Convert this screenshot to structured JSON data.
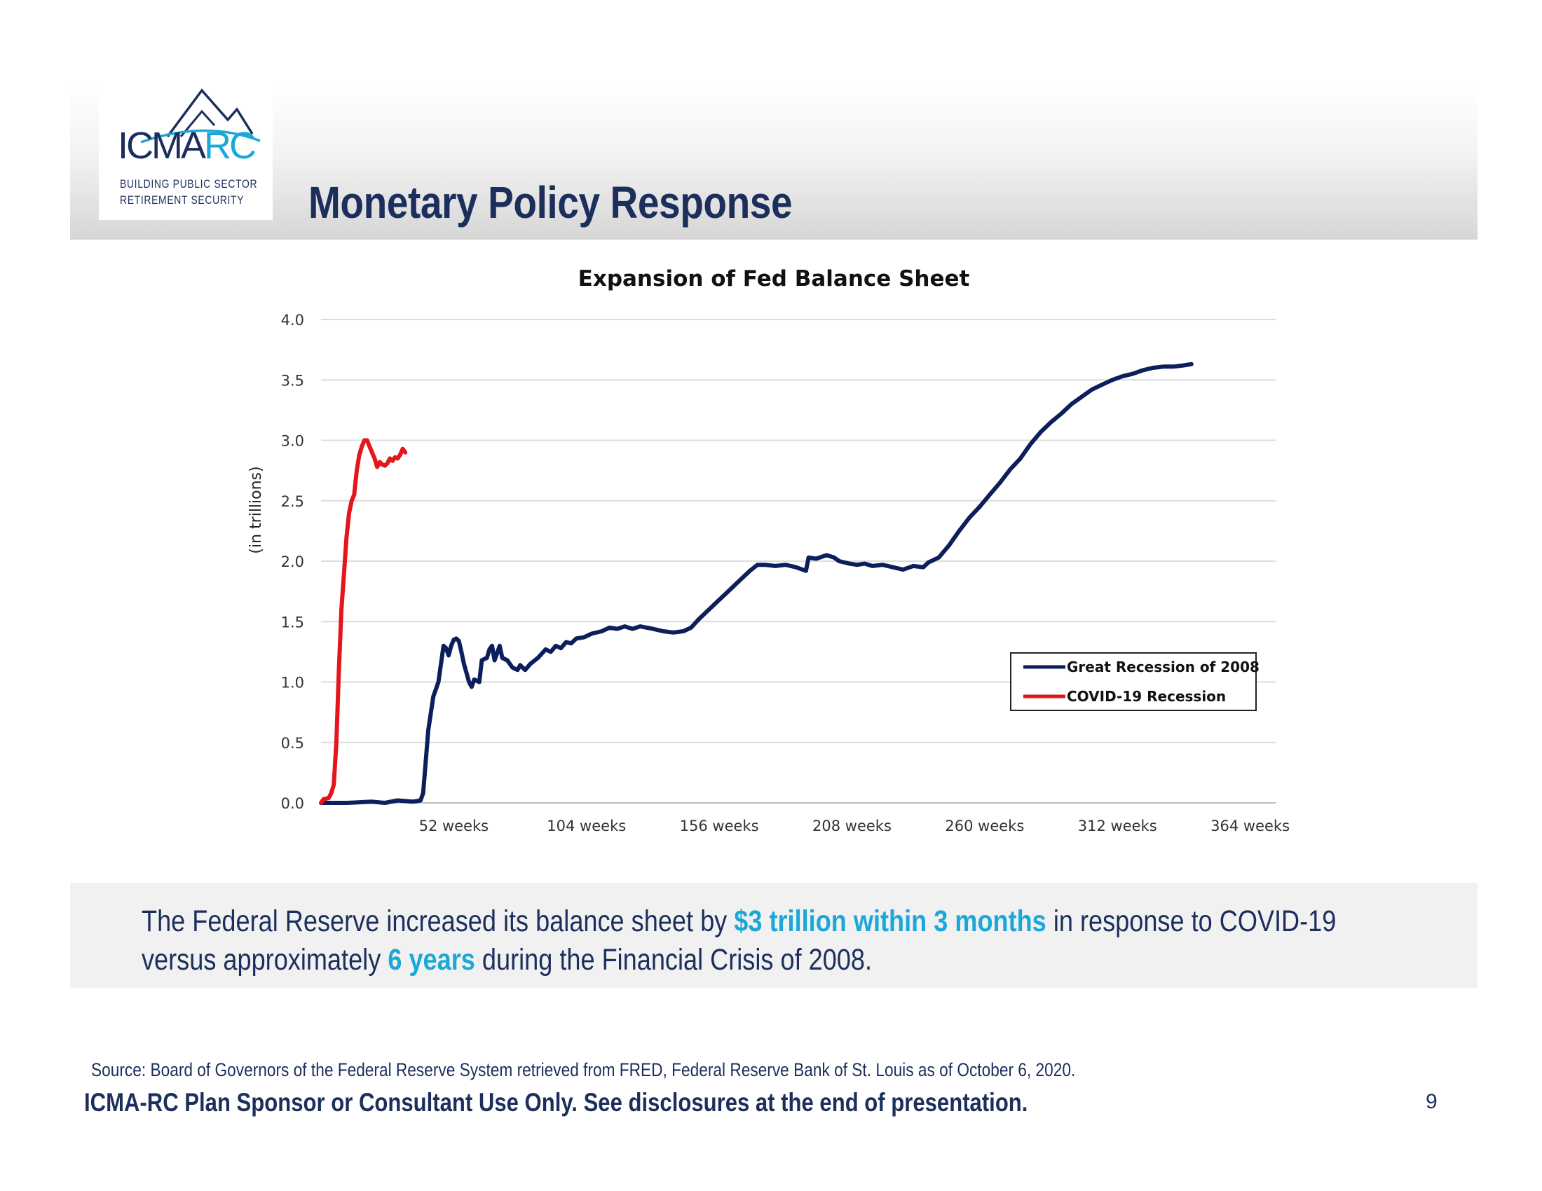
{
  "logo": {
    "name_main": "ICMA",
    "name_accent": "RC",
    "tagline_line1": "BUILDING PUBLIC SECTOR",
    "tagline_line2": "RETIREMENT SECURITY",
    "colors": {
      "navy": "#1c2f5c",
      "accent": "#1ba8d8"
    }
  },
  "page_title": "Monetary Policy Response",
  "callout": {
    "part1": "The Federal Reserve increased its balance sheet by ",
    "highlight1": "$3 trillion within 3 months",
    "part2": " in response to COVID-19",
    "part3": "versus approximately ",
    "highlight2": "6 years",
    "part4": " during the Financial Crisis of 2008."
  },
  "source": "Source:  Board of Governors of the Federal Reserve System retrieved from FRED, Federal Reserve Bank of St. Louis as of October 6, 2020.",
  "disclaimer": "ICMA-RC Plan Sponsor or Consultant Use Only.  See disclosures at the end of presentation.",
  "page_number": "9",
  "chart_data": {
    "type": "line",
    "title": "Expansion of Fed Balance Sheet",
    "ylabel": "(in trillions)",
    "xlabel": "",
    "xlim": [
      0,
      374
    ],
    "ylim": [
      0,
      4.0
    ],
    "yticks": [
      "0.0",
      "0.5",
      "1.0",
      "1.5",
      "2.0",
      "2.5",
      "3.0",
      "3.5",
      "4.0"
    ],
    "xticks": [
      {
        "x": 52,
        "label": "52 weeks"
      },
      {
        "x": 104,
        "label": "104 weeks"
      },
      {
        "x": 156,
        "label": "156 weeks"
      },
      {
        "x": 208,
        "label": "208 weeks"
      },
      {
        "x": 260,
        "label": "260 weeks"
      },
      {
        "x": 312,
        "label": "312 weeks"
      },
      {
        "x": 364,
        "label": "364 weeks"
      }
    ],
    "grid": true,
    "legend_position": "lower-right",
    "series": [
      {
        "name": "Great Recession of 2008",
        "color": "#0c1f5c",
        "points": [
          [
            0,
            0.0
          ],
          [
            10,
            0.0
          ],
          [
            20,
            0.01
          ],
          [
            25,
            0.0
          ],
          [
            30,
            0.02
          ],
          [
            36,
            0.01
          ],
          [
            39,
            0.02
          ],
          [
            40,
            0.08
          ],
          [
            42,
            0.6
          ],
          [
            44,
            0.88
          ],
          [
            46,
            1.0
          ],
          [
            48,
            1.3
          ],
          [
            49,
            1.28
          ],
          [
            50,
            1.22
          ],
          [
            51,
            1.3
          ],
          [
            52,
            1.35
          ],
          [
            53,
            1.36
          ],
          [
            54,
            1.34
          ],
          [
            55,
            1.25
          ],
          [
            56,
            1.15
          ],
          [
            58,
            1.0
          ],
          [
            59,
            0.96
          ],
          [
            60,
            1.02
          ],
          [
            62,
            1.0
          ],
          [
            63,
            1.18
          ],
          [
            65,
            1.2
          ],
          [
            66,
            1.27
          ],
          [
            67,
            1.3
          ],
          [
            68,
            1.18
          ],
          [
            69,
            1.24
          ],
          [
            70,
            1.3
          ],
          [
            71,
            1.2
          ],
          [
            73,
            1.18
          ],
          [
            75,
            1.12
          ],
          [
            77,
            1.1
          ],
          [
            78,
            1.14
          ],
          [
            80,
            1.1
          ],
          [
            82,
            1.15
          ],
          [
            85,
            1.2
          ],
          [
            88,
            1.27
          ],
          [
            90,
            1.25
          ],
          [
            92,
            1.3
          ],
          [
            94,
            1.28
          ],
          [
            96,
            1.33
          ],
          [
            98,
            1.32
          ],
          [
            100,
            1.36
          ],
          [
            103,
            1.37
          ],
          [
            106,
            1.4
          ],
          [
            110,
            1.42
          ],
          [
            113,
            1.45
          ],
          [
            116,
            1.44
          ],
          [
            119,
            1.46
          ],
          [
            122,
            1.44
          ],
          [
            125,
            1.46
          ],
          [
            130,
            1.44
          ],
          [
            134,
            1.42
          ],
          [
            138,
            1.41
          ],
          [
            142,
            1.42
          ],
          [
            145,
            1.45
          ],
          [
            148,
            1.52
          ],
          [
            152,
            1.6
          ],
          [
            156,
            1.68
          ],
          [
            160,
            1.76
          ],
          [
            164,
            1.84
          ],
          [
            168,
            1.92
          ],
          [
            171,
            1.97
          ],
          [
            174,
            1.97
          ],
          [
            178,
            1.96
          ],
          [
            182,
            1.97
          ],
          [
            186,
            1.95
          ],
          [
            190,
            1.92
          ],
          [
            191,
            2.03
          ],
          [
            194,
            2.02
          ],
          [
            198,
            2.05
          ],
          [
            201,
            2.03
          ],
          [
            203,
            2.0
          ],
          [
            207,
            1.98
          ],
          [
            210,
            1.97
          ],
          [
            213,
            1.98
          ],
          [
            216,
            1.96
          ],
          [
            220,
            1.97
          ],
          [
            224,
            1.95
          ],
          [
            228,
            1.93
          ],
          [
            232,
            1.96
          ],
          [
            236,
            1.95
          ],
          [
            238,
            1.99
          ],
          [
            242,
            2.03
          ],
          [
            246,
            2.13
          ],
          [
            250,
            2.25
          ],
          [
            254,
            2.36
          ],
          [
            258,
            2.45
          ],
          [
            262,
            2.55
          ],
          [
            266,
            2.65
          ],
          [
            270,
            2.76
          ],
          [
            274,
            2.85
          ],
          [
            278,
            2.97
          ],
          [
            282,
            3.07
          ],
          [
            286,
            3.15
          ],
          [
            290,
            3.22
          ],
          [
            294,
            3.3
          ],
          [
            298,
            3.36
          ],
          [
            302,
            3.42
          ],
          [
            306,
            3.46
          ],
          [
            310,
            3.5
          ],
          [
            314,
            3.53
          ],
          [
            318,
            3.55
          ],
          [
            322,
            3.58
          ],
          [
            326,
            3.6
          ],
          [
            330,
            3.61
          ],
          [
            334,
            3.61
          ],
          [
            338,
            3.62
          ],
          [
            341,
            3.63
          ]
        ]
      },
      {
        "name": "COVID-19 Recession",
        "color": "#e3161b",
        "points": [
          [
            0,
            0.0
          ],
          [
            1,
            0.03
          ],
          [
            3,
            0.04
          ],
          [
            4,
            0.08
          ],
          [
            5,
            0.15
          ],
          [
            6,
            0.5
          ],
          [
            7,
            1.1
          ],
          [
            8,
            1.6
          ],
          [
            9,
            1.9
          ],
          [
            10,
            2.2
          ],
          [
            11,
            2.4
          ],
          [
            12,
            2.5
          ],
          [
            13,
            2.55
          ],
          [
            14,
            2.75
          ],
          [
            15,
            2.88
          ],
          [
            16,
            2.95
          ],
          [
            17,
            3.0
          ],
          [
            18,
            3.0
          ],
          [
            19,
            2.95
          ],
          [
            20,
            2.9
          ],
          [
            21,
            2.85
          ],
          [
            22,
            2.78
          ],
          [
            23,
            2.82
          ],
          [
            24,
            2.8
          ],
          [
            25,
            2.79
          ],
          [
            26,
            2.81
          ],
          [
            27,
            2.85
          ],
          [
            28,
            2.83
          ],
          [
            29,
            2.86
          ],
          [
            30,
            2.85
          ],
          [
            31,
            2.88
          ],
          [
            32,
            2.93
          ],
          [
            33,
            2.9
          ]
        ]
      }
    ]
  }
}
